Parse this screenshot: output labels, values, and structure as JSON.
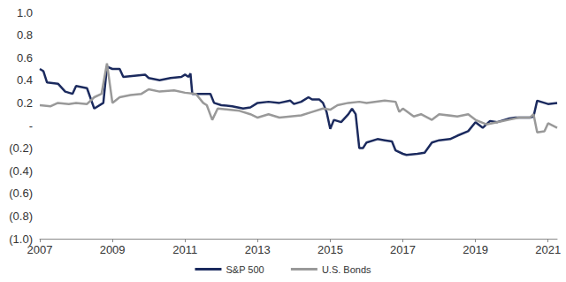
{
  "chart_data": {
    "type": "line",
    "xlim": [
      2007,
      2021.25
    ],
    "xticks": [
      2007,
      2009,
      2011,
      2013,
      2015,
      2017,
      2019,
      2021
    ],
    "ylim": [
      -1.0,
      1.0
    ],
    "yticks": [
      {
        "value": -1.0,
        "label": "(1.0)"
      },
      {
        "value": -0.8,
        "label": "(0.8)"
      },
      {
        "value": -0.6,
        "label": "(0.6)"
      },
      {
        "value": -0.4,
        "label": "(0.4)"
      },
      {
        "value": -0.2,
        "label": "(0.2)"
      },
      {
        "value": 0,
        "label": "-"
      },
      0.2,
      0.4,
      0.6,
      0.8,
      {
        "value": 1.0,
        "label": "1.0"
      }
    ],
    "grid": false,
    "legend": "bottom",
    "series": [
      {
        "name": "S&P 500",
        "color": "#1b2a5e",
        "x": [
          2007.0,
          2007.1,
          2007.2,
          2007.5,
          2007.7,
          2007.9,
          2008.0,
          2008.3,
          2008.5,
          2008.6,
          2008.75,
          2008.85,
          2009.0,
          2009.2,
          2009.3,
          2009.6,
          2009.9,
          2010.0,
          2010.3,
          2010.6,
          2010.9,
          2011.0,
          2011.1,
          2011.15,
          2011.2,
          2011.5,
          2011.7,
          2011.8,
          2012.0,
          2012.3,
          2012.6,
          2012.8,
          2013.0,
          2013.3,
          2013.6,
          2013.9,
          2014.0,
          2014.2,
          2014.4,
          2014.5,
          2014.7,
          2014.8,
          2014.9,
          2015.0,
          2015.1,
          2015.3,
          2015.5,
          2015.6,
          2015.7,
          2015.8,
          2015.9,
          2016.0,
          2016.3,
          2016.5,
          2016.7,
          2016.8,
          2017.0,
          2017.1,
          2017.4,
          2017.6,
          2017.8,
          2018.0,
          2018.3,
          2018.5,
          2018.8,
          2019.0,
          2019.2,
          2019.4,
          2019.6,
          2019.9,
          2020.1,
          2020.5,
          2020.6,
          2020.7,
          2020.9,
          2021.0,
          2021.25
        ],
        "values": [
          0.5,
          0.48,
          0.38,
          0.37,
          0.3,
          0.28,
          0.35,
          0.33,
          0.15,
          0.17,
          0.2,
          0.52,
          0.5,
          0.5,
          0.43,
          0.44,
          0.45,
          0.42,
          0.4,
          0.42,
          0.43,
          0.45,
          0.43,
          0.46,
          0.28,
          0.28,
          0.28,
          0.2,
          0.18,
          0.17,
          0.15,
          0.16,
          0.2,
          0.21,
          0.2,
          0.22,
          0.19,
          0.21,
          0.25,
          0.23,
          0.23,
          0.2,
          0.12,
          -0.03,
          0.05,
          0.03,
          0.1,
          0.15,
          0.1,
          -0.2,
          -0.2,
          -0.15,
          -0.12,
          -0.13,
          -0.14,
          -0.22,
          -0.25,
          -0.26,
          -0.25,
          -0.24,
          -0.15,
          -0.13,
          -0.12,
          -0.09,
          -0.05,
          0.03,
          -0.02,
          0.04,
          0.03,
          0.06,
          0.07,
          0.07,
          0.08,
          0.22,
          0.2,
          0.19,
          0.2
        ]
      },
      {
        "name": "U.S. Bonds",
        "color": "#999999",
        "x": [
          2007.0,
          2007.3,
          2007.5,
          2007.8,
          2008.0,
          2008.3,
          2008.5,
          2008.7,
          2008.85,
          2009.0,
          2009.2,
          2009.5,
          2009.8,
          2010.0,
          2010.3,
          2010.7,
          2011.0,
          2011.3,
          2011.5,
          2011.6,
          2011.75,
          2011.9,
          2012.2,
          2012.5,
          2012.8,
          2013.0,
          2013.3,
          2013.6,
          2013.9,
          2014.2,
          2014.5,
          2014.8,
          2015.0,
          2015.2,
          2015.5,
          2015.8,
          2016.0,
          2016.5,
          2016.8,
          2016.9,
          2017.0,
          2017.3,
          2017.5,
          2017.8,
          2018.0,
          2018.5,
          2018.8,
          2019.0,
          2019.3,
          2019.6,
          2019.9,
          2020.2,
          2020.5,
          2020.6,
          2020.7,
          2020.9,
          2021.0,
          2021.25
        ],
        "values": [
          0.18,
          0.17,
          0.2,
          0.19,
          0.2,
          0.19,
          0.25,
          0.28,
          0.55,
          0.2,
          0.25,
          0.27,
          0.28,
          0.32,
          0.3,
          0.31,
          0.29,
          0.28,
          0.2,
          0.18,
          0.05,
          0.15,
          0.14,
          0.13,
          0.1,
          0.07,
          0.1,
          0.07,
          0.08,
          0.09,
          0.12,
          0.15,
          0.14,
          0.18,
          0.2,
          0.21,
          0.2,
          0.22,
          0.21,
          0.12,
          0.15,
          0.08,
          0.1,
          0.05,
          0.1,
          0.08,
          0.1,
          0.05,
          0.01,
          0.03,
          0.05,
          0.07,
          0.07,
          0.1,
          -0.06,
          -0.05,
          0.02,
          -0.02
        ]
      }
    ]
  }
}
